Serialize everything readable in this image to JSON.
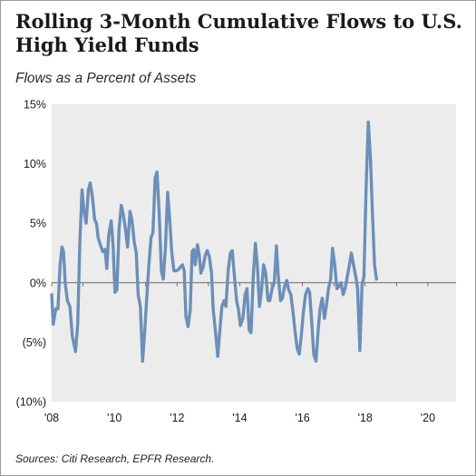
{
  "chart_data": {
    "type": "line",
    "title": "Rolling 3-Month Cumulative Flows to U.S. High Yield Funds",
    "subtitle": "Flows as a Percent of Assets",
    "source": "Sources: Citi Research, EPFR Research.",
    "xlabel": "",
    "ylabel": "",
    "unit": "percent of assets",
    "xlim": [
      2008.0,
      2020.9
    ],
    "ylim": [
      -10,
      15
    ],
    "x_ticks": [
      {
        "value": 2008,
        "label": "'08"
      },
      {
        "value": 2010,
        "label": "'10"
      },
      {
        "value": 2012,
        "label": "'12"
      },
      {
        "value": 2014,
        "label": "'14"
      },
      {
        "value": 2016,
        "label": "'16"
      },
      {
        "value": 2018,
        "label": "'18"
      },
      {
        "value": 2020,
        "label": "'20"
      }
    ],
    "y_ticks": [
      {
        "value": 15,
        "label": "15%"
      },
      {
        "value": 10,
        "label": "10%"
      },
      {
        "value": 5,
        "label": "5%"
      },
      {
        "value": 0,
        "label": "0%"
      },
      {
        "value": -5,
        "label": "(5%)"
      },
      {
        "value": -10,
        "label": "(10%)"
      }
    ],
    "grid": false,
    "zero_line": true,
    "plot_background": "#ececec",
    "series": [
      {
        "color": "#6b8fb8",
        "points": [
          [
            2008.0,
            -1.0
          ],
          [
            2008.05,
            -3.5
          ],
          [
            2008.13,
            -2.2
          ],
          [
            2008.2,
            -2.2
          ],
          [
            2008.27,
            1.5
          ],
          [
            2008.33,
            3.0
          ],
          [
            2008.38,
            2.6
          ],
          [
            2008.43,
            0.0
          ],
          [
            2008.5,
            -1.5
          ],
          [
            2008.58,
            -2.0
          ],
          [
            2008.66,
            -4.5
          ],
          [
            2008.76,
            -5.8
          ],
          [
            2008.83,
            -3.5
          ],
          [
            2008.9,
            3.5
          ],
          [
            2008.97,
            7.8
          ],
          [
            2009.03,
            6.0
          ],
          [
            2009.1,
            5.0
          ],
          [
            2009.17,
            7.8
          ],
          [
            2009.23,
            8.4
          ],
          [
            2009.3,
            7.2
          ],
          [
            2009.37,
            5.3
          ],
          [
            2009.43,
            5.0
          ],
          [
            2009.48,
            3.8
          ],
          [
            2009.55,
            3.2
          ],
          [
            2009.63,
            2.6
          ],
          [
            2009.7,
            2.8
          ],
          [
            2009.76,
            1.2
          ],
          [
            2009.82,
            4.0
          ],
          [
            2009.9,
            5.2
          ],
          [
            2009.96,
            3.0
          ],
          [
            2010.02,
            -0.8
          ],
          [
            2010.08,
            -0.6
          ],
          [
            2010.15,
            4.5
          ],
          [
            2010.22,
            6.5
          ],
          [
            2010.28,
            5.8
          ],
          [
            2010.35,
            4.6
          ],
          [
            2010.42,
            3.0
          ],
          [
            2010.5,
            6.0
          ],
          [
            2010.56,
            5.3
          ],
          [
            2010.63,
            3.5
          ],
          [
            2010.7,
            2.5
          ],
          [
            2010.76,
            -1.0
          ],
          [
            2010.83,
            -2.0
          ],
          [
            2010.9,
            -6.6
          ],
          [
            2010.97,
            -4.0
          ],
          [
            2011.04,
            -1.0
          ],
          [
            2011.1,
            1.5
          ],
          [
            2011.17,
            3.8
          ],
          [
            2011.23,
            4.2
          ],
          [
            2011.3,
            8.8
          ],
          [
            2011.36,
            9.3
          ],
          [
            2011.43,
            5.8
          ],
          [
            2011.5,
            1.0
          ],
          [
            2011.56,
            0.3
          ],
          [
            2011.63,
            3.0
          ],
          [
            2011.7,
            7.6
          ],
          [
            2011.76,
            5.5
          ],
          [
            2011.83,
            2.6
          ],
          [
            2011.9,
            1.0
          ],
          [
            2011.97,
            1.0
          ],
          [
            2012.04,
            1.1
          ],
          [
            2012.1,
            1.3
          ],
          [
            2012.17,
            1.5
          ],
          [
            2012.23,
            1.0
          ],
          [
            2012.28,
            -2.8
          ],
          [
            2012.35,
            -3.7
          ],
          [
            2012.42,
            -2.3
          ],
          [
            2012.48,
            2.6
          ],
          [
            2012.53,
            2.8
          ],
          [
            2012.58,
            1.5
          ],
          [
            2012.65,
            3.2
          ],
          [
            2012.7,
            2.5
          ],
          [
            2012.76,
            0.8
          ],
          [
            2012.83,
            1.3
          ],
          [
            2012.9,
            2.3
          ],
          [
            2012.96,
            2.7
          ],
          [
            2013.03,
            2.2
          ],
          [
            2013.1,
            0.8
          ],
          [
            2013.15,
            -2.2
          ],
          [
            2013.22,
            -4.0
          ],
          [
            2013.3,
            -6.2
          ],
          [
            2013.36,
            -4.2
          ],
          [
            2013.43,
            -2.0
          ],
          [
            2013.5,
            -1.5
          ],
          [
            2013.56,
            -2.0
          ],
          [
            2013.63,
            1.0
          ],
          [
            2013.7,
            2.5
          ],
          [
            2013.76,
            2.7
          ],
          [
            2013.83,
            0.5
          ],
          [
            2013.9,
            -1.5
          ],
          [
            2013.96,
            -2.3
          ],
          [
            2014.02,
            -3.6
          ],
          [
            2014.1,
            -3.0
          ],
          [
            2014.17,
            -1.0
          ],
          [
            2014.23,
            -0.5
          ],
          [
            2014.3,
            -4.0
          ],
          [
            2014.36,
            -4.2
          ],
          [
            2014.43,
            0.5
          ],
          [
            2014.5,
            3.3
          ],
          [
            2014.56,
            1.5
          ],
          [
            2014.63,
            -2.0
          ],
          [
            2014.7,
            -0.5
          ],
          [
            2014.76,
            1.5
          ],
          [
            2014.83,
            0.8
          ],
          [
            2014.9,
            -1.5
          ],
          [
            2014.96,
            -1.5
          ],
          [
            2015.03,
            -0.5
          ],
          [
            2015.1,
            0.0
          ],
          [
            2015.17,
            3.1
          ],
          [
            2015.23,
            0.5
          ],
          [
            2015.3,
            -1.5
          ],
          [
            2015.36,
            -1.3
          ],
          [
            2015.43,
            -0.3
          ],
          [
            2015.5,
            0.2
          ],
          [
            2015.56,
            -0.6
          ],
          [
            2015.63,
            -1.0
          ],
          [
            2015.7,
            -2.5
          ],
          [
            2015.76,
            -4.0
          ],
          [
            2015.83,
            -5.5
          ],
          [
            2015.9,
            -6.0
          ],
          [
            2015.96,
            -4.5
          ],
          [
            2016.03,
            -2.5
          ],
          [
            2016.1,
            -1.0
          ],
          [
            2016.17,
            -0.5
          ],
          [
            2016.23,
            -0.8
          ],
          [
            2016.3,
            -3.5
          ],
          [
            2016.36,
            -6.0
          ],
          [
            2016.43,
            -6.6
          ],
          [
            2016.5,
            -4.0
          ],
          [
            2016.56,
            -2.2
          ],
          [
            2016.63,
            -1.3
          ],
          [
            2016.7,
            -3.0
          ],
          [
            2016.76,
            -2.0
          ],
          [
            2016.83,
            -0.5
          ],
          [
            2016.9,
            0.3
          ],
          [
            2016.96,
            2.9
          ],
          [
            2017.03,
            1.5
          ],
          [
            2017.1,
            -0.5
          ],
          [
            2017.17,
            -0.3
          ],
          [
            2017.23,
            0.0
          ],
          [
            2017.3,
            -1.0
          ],
          [
            2017.36,
            -0.5
          ],
          [
            2017.43,
            0.5
          ],
          [
            2017.5,
            1.5
          ],
          [
            2017.56,
            2.5
          ],
          [
            2017.63,
            1.5
          ],
          [
            2017.7,
            0.5
          ],
          [
            2017.76,
            -0.5
          ],
          [
            2017.83,
            -5.7
          ],
          [
            2017.9,
            -0.2
          ],
          [
            2017.96,
            0.5
          ],
          [
            2018.03,
            8.0
          ],
          [
            2018.1,
            13.5
          ],
          [
            2018.17,
            10.5
          ],
          [
            2018.23,
            6.0
          ],
          [
            2018.3,
            1.5
          ],
          [
            2018.36,
            0.3
          ]
        ]
      }
    ]
  }
}
